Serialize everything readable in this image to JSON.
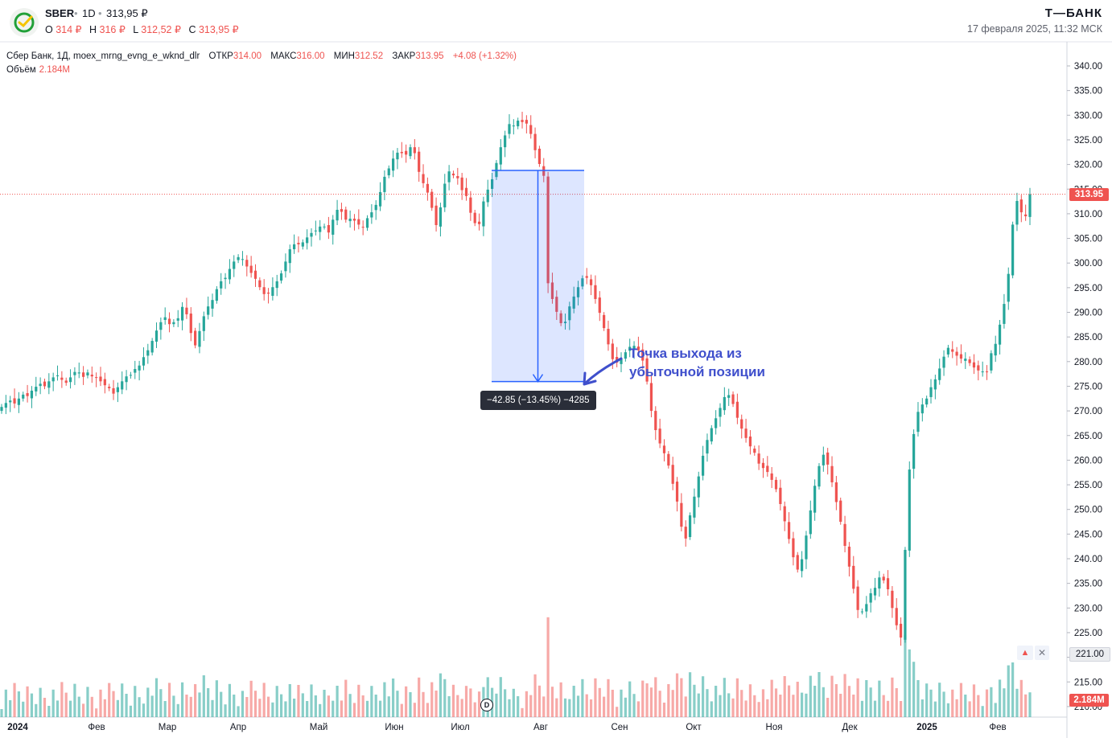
{
  "header": {
    "ticker": "SBER",
    "timeframe": "1D",
    "last_price": "313,95 ₽",
    "ohlc": [
      {
        "label": "O",
        "value": "314 ₽"
      },
      {
        "label": "H",
        "value": "316 ₽"
      },
      {
        "label": "L",
        "value": "312,52 ₽"
      },
      {
        "label": "C",
        "value": "313,95 ₽"
      }
    ],
    "brand": "Т—БАНК",
    "datetime": "17 февраля 2025, 11:32 МСК"
  },
  "legend": {
    "series": "Сбер Банк, 1Д, moex_mrng_evng_e_wknd_dlr",
    "open_label": "ОТКР",
    "open": "314.00",
    "high_label": "МАКС",
    "high": "316.00",
    "low_label": "МИН",
    "low": "312.52",
    "close_label": "ЗАКР",
    "close": "313.95",
    "change": "+4.08 (+1.32%)",
    "volume_label": "Объём",
    "volume": "2.184M"
  },
  "annotation": {
    "line1": "Точка выхода из",
    "line2": "убыточной позиции"
  },
  "measure": {
    "label": "−42.85 (−13.45%) −4285",
    "from_price": 318.8,
    "to_price": 275.95
  },
  "price_tags": {
    "last": "313.95",
    "volume": "2.184M",
    "level": "221.00"
  },
  "buttons": {
    "alert": "▲",
    "close": "✕",
    "dividend": "D"
  },
  "colors": {
    "up": "#26a69a",
    "down": "#ef5350",
    "measure": "#2962ff",
    "annotation": "#3f4fcc"
  },
  "chart_data": {
    "type": "candlestick",
    "y_ticks": [
      "340.00",
      "335.00",
      "330.00",
      "325.00",
      "320.00",
      "315.00",
      "310.00",
      "305.00",
      "300.00",
      "295.00",
      "290.00",
      "285.00",
      "280.00",
      "275.00",
      "270.00",
      "265.00",
      "260.00",
      "255.00",
      "250.00",
      "245.00",
      "240.00",
      "235.00",
      "230.00",
      "225.00",
      "220.00",
      "215.00",
      "210.00"
    ],
    "x_ticks": [
      "2024",
      "Фев",
      "Мар",
      "Апр",
      "Май",
      "Июн",
      "Июл",
      "Авг",
      "Сен",
      "Окт",
      "Ноя",
      "Дек",
      "2025",
      "Фев"
    ],
    "ylim": [
      208,
      341
    ],
    "last_close": 313.95,
    "closes": [
      270.8,
      271.6,
      272.1,
      271.5,
      272.5,
      273.3,
      273.0,
      274.1,
      274.9,
      275.5,
      275.0,
      276.0,
      276.8,
      277.2,
      276.3,
      275.7,
      276.8,
      277.9,
      277.8,
      276.9,
      277.8,
      277.0,
      276.8,
      276.0,
      275.2,
      274.6,
      273.5,
      274.8,
      276.0,
      277.0,
      277.3,
      278.5,
      279.2,
      280.9,
      282.3,
      284.2,
      286.3,
      288.0,
      289.0,
      287.6,
      288.0,
      288.8,
      291.1,
      289.6,
      285.8,
      283.3,
      286.2,
      289.2,
      291.2,
      292.5,
      294.7,
      296.3,
      297.0,
      298.8,
      300.3,
      301.2,
      300.8,
      299.3,
      298.0,
      296.8,
      295.1,
      293.7,
      293.8,
      295.1,
      296.3,
      297.9,
      300.3,
      302.8,
      303.8,
      303.8,
      304.2,
      305.2,
      306.1,
      306.6,
      307.4,
      307.4,
      306.2,
      308.8,
      310.8,
      310.4,
      308.8,
      309.0,
      308.6,
      307.8,
      307.3,
      309.1,
      310.3,
      311.8,
      314.4,
      317.5,
      319.2,
      321.2,
      322.4,
      322.3,
      322.0,
      323.5,
      322.3,
      318.5,
      316.2,
      314.3,
      311.2,
      307.7,
      311.3,
      316.1,
      318.6,
      317.8,
      317.2,
      314.8,
      313.6,
      310.2,
      308.1,
      307.9,
      312.5,
      314.9,
      317.0,
      320.3,
      323.5,
      325.9,
      328.2,
      327.9,
      328.9,
      328.6,
      328.3,
      326.2,
      322.9,
      320.1,
      317.7,
      295.9,
      292.7,
      290.1,
      287.8,
      288.1,
      291.2,
      293.2,
      295.1,
      296.9,
      297.0,
      295.5,
      292.7,
      289.9,
      286.8,
      283.5,
      280.5,
      279.8,
      280.6,
      281.9,
      283.0,
      283.2,
      282.3,
      280.2,
      275.95,
      270.0,
      266.1,
      263.4,
      261.4,
      258.9,
      255.2,
      251.6,
      246.5,
      244.1,
      248.8,
      252.6,
      256.7,
      260.9,
      264.1,
      266.5,
      268.5,
      270.6,
      272.8,
      273.2,
      271.4,
      268.6,
      266.4,
      264.5,
      262.8,
      261.5,
      259.3,
      258.4,
      257.6,
      256.0,
      254.1,
      251.1,
      247.6,
      244.0,
      240.3,
      237.8,
      239.9,
      244.7,
      249.8,
      254.8,
      258.8,
      261.1,
      259.1,
      255.5,
      251.5,
      247.5,
      242.6,
      238.4,
      233.9,
      229.6,
      229.3,
      230.8,
      233.0,
      234.1,
      236.2,
      235.6,
      233.8,
      230.0,
      226.5,
      224.0,
      241.8,
      258.1,
      265.3,
      269.8,
      271.3,
      272.5,
      274.8,
      276.4,
      278.6,
      281.0,
      282.8,
      282.0,
      281.2,
      280.6,
      280.6,
      279.7,
      278.8,
      278.2,
      278.0,
      277.9,
      281.7,
      283.6,
      287.5,
      291.7,
      297.8,
      307.8,
      312.6,
      310.3,
      309.5,
      313.95
    ]
  }
}
